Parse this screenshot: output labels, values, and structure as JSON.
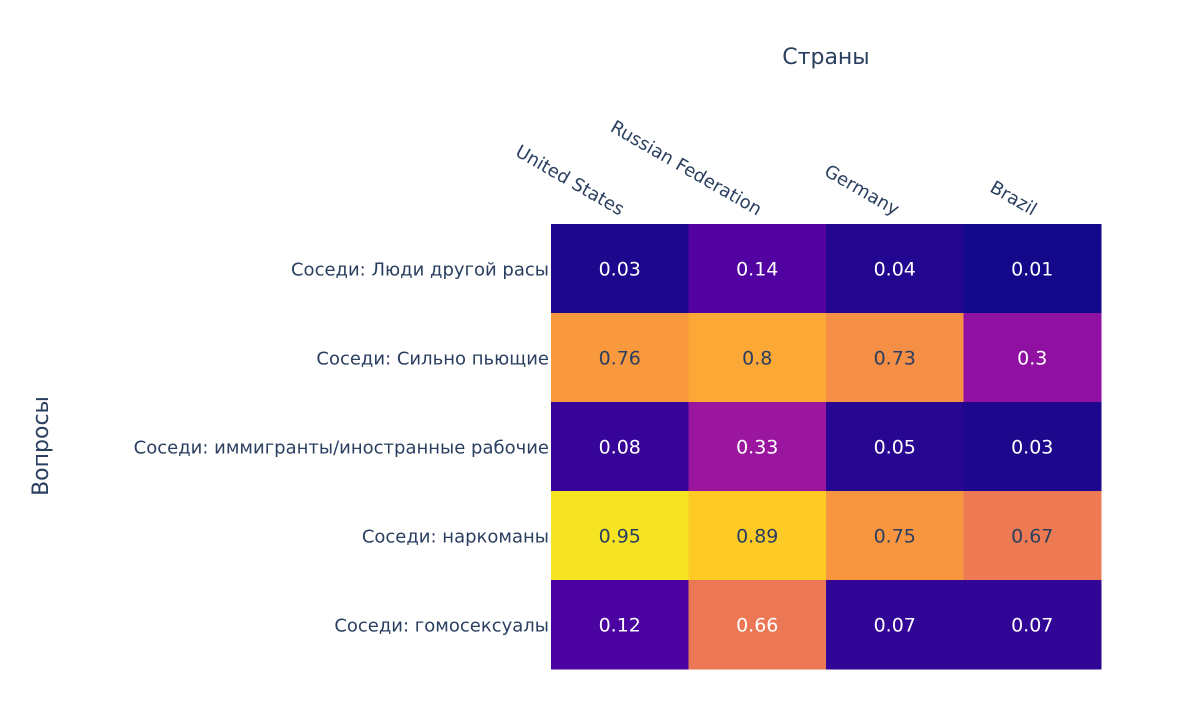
{
  "chart_data": {
    "type": "heatmap",
    "xlabel": "Страны",
    "ylabel": "Вопросы",
    "x": [
      "United States",
      "Russian Federation",
      "Germany",
      "Brazil"
    ],
    "y": [
      "Соседи: Люди другой расы",
      "Соседи: Сильно пьющие",
      "Соседи: иммигранты/иностранные рабочие",
      "Соседи: наркоманы",
      "Соседи: гомосексуалы"
    ],
    "z": [
      [
        0.03,
        0.14,
        0.04,
        0.01
      ],
      [
        0.76,
        0.8,
        0.73,
        0.3
      ],
      [
        0.08,
        0.33,
        0.05,
        0.03
      ],
      [
        0.95,
        0.89,
        0.75,
        0.67
      ],
      [
        0.12,
        0.66,
        0.07,
        0.07
      ]
    ],
    "zmin": 0,
    "zmax": 1,
    "colorscale": "plasma",
    "text_auto": true,
    "x_axis_side": "top",
    "x_tick_angle": 30
  }
}
